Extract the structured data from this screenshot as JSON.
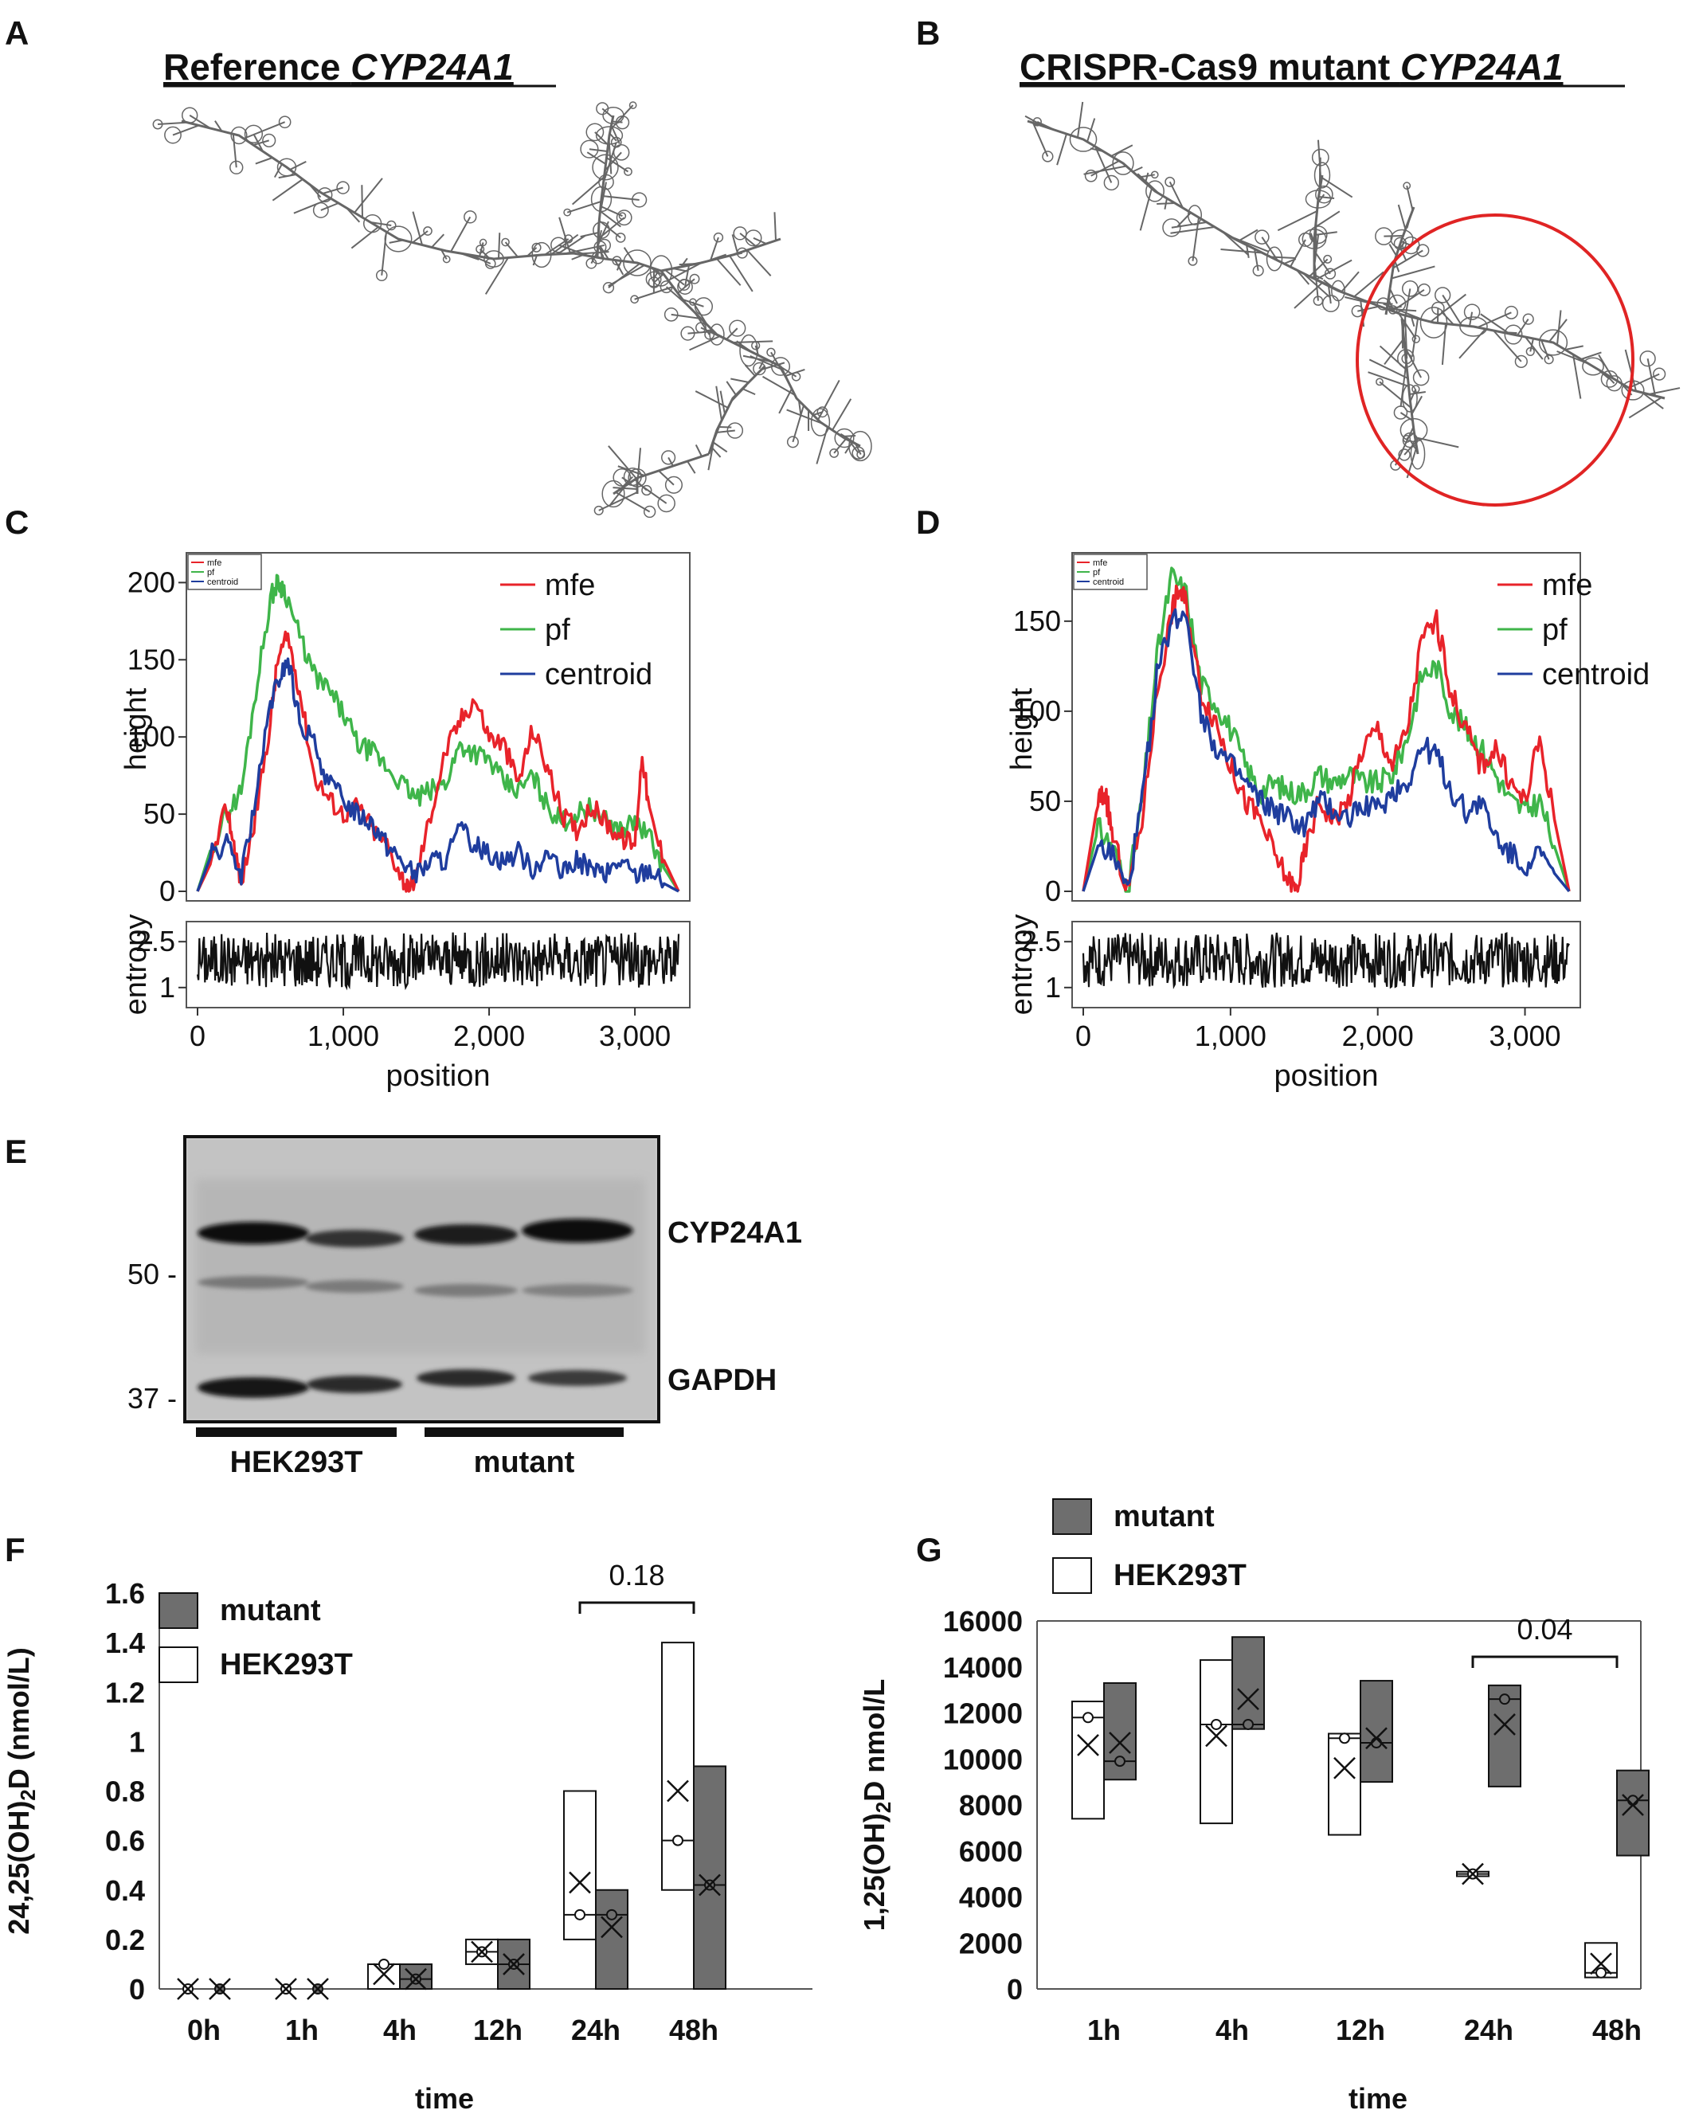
{
  "panels": {
    "A": {
      "label": "A",
      "title_prefix": "Reference ",
      "title_gene": "CYP24A1"
    },
    "B": {
      "label": "B",
      "title_prefix": "CRISPR-Cas9 mutant ",
      "title_gene": "CYP24A1"
    },
    "C": {
      "label": "C"
    },
    "D": {
      "label": "D"
    },
    "E": {
      "label": "E"
    },
    "F": {
      "label": "F"
    },
    "G": {
      "label": "G"
    }
  },
  "colors": {
    "mfe": "#e8232a",
    "pf": "#3fb54a",
    "centroid": "#1f3d9e",
    "entropy": "#111111",
    "mutant_fill": "#6e6e6e",
    "highlight_circle": "#e02424"
  },
  "legend_small": {
    "mfe": "mfe",
    "pf": "pf",
    "centroid": "centroid"
  },
  "legend_big": {
    "mfe": "mfe",
    "pf": "pf",
    "centroid": "centroid"
  },
  "profile_axes": {
    "height_label": "height",
    "entropy_label": "entropy",
    "position_label": "position",
    "x_ticks": [
      "0",
      "1,000",
      "2,000",
      "3,000"
    ],
    "entropy_ticks": [
      "2.5",
      "1"
    ],
    "C_y_ticks": [
      "200",
      "150",
      "100",
      "50",
      "0"
    ],
    "D_y_ticks": [
      "150",
      "100",
      "50",
      "0"
    ]
  },
  "western": {
    "bands": {
      "top": "CYP24A1",
      "bottom": "GAPDH"
    },
    "markers": [
      "50 -",
      "37 -"
    ],
    "groups": [
      "HEK293T",
      "mutant"
    ]
  },
  "boxplot_legend": {
    "mutant": "mutant",
    "hek": "HEK293T"
  },
  "chart_data": [
    {
      "panel": "C",
      "type": "line",
      "x_range": [
        0,
        3300
      ],
      "ylim": [
        0,
        210
      ],
      "ylabel": "height",
      "xlabel": "position",
      "series": [
        {
          "name": "mfe",
          "x": [
            0,
            100,
            200,
            250,
            300,
            400,
            500,
            550,
            620,
            700,
            800,
            900,
            1000,
            1100,
            1200,
            1300,
            1400,
            1450,
            1500,
            1600,
            1700,
            1800,
            1900,
            2000,
            2100,
            2200,
            2300,
            2400,
            2500,
            2600,
            2700,
            2800,
            2900,
            3000,
            3050,
            3100,
            3200,
            3300
          ],
          "values": [
            0,
            20,
            55,
            30,
            5,
            50,
            110,
            150,
            165,
            130,
            75,
            60,
            50,
            55,
            40,
            30,
            10,
            0,
            10,
            50,
            90,
            110,
            125,
            100,
            95,
            70,
            105,
            80,
            50,
            40,
            55,
            45,
            35,
            30,
            90,
            50,
            20,
            0
          ]
        },
        {
          "name": "pf",
          "x": [
            0,
            100,
            200,
            300,
            400,
            500,
            550,
            600,
            700,
            800,
            900,
            1000,
            1100,
            1200,
            1300,
            1400,
            1500,
            1600,
            1700,
            1800,
            1900,
            2000,
            2100,
            2200,
            2300,
            2400,
            2500,
            2600,
            2700,
            2800,
            2900,
            3000,
            3100,
            3200,
            3300
          ],
          "values": [
            0,
            30,
            50,
            65,
            130,
            190,
            200,
            195,
            165,
            140,
            130,
            115,
            95,
            90,
            80,
            70,
            60,
            65,
            70,
            95,
            90,
            85,
            70,
            65,
            75,
            55,
            45,
            50,
            55,
            45,
            40,
            45,
            35,
            15,
            0
          ]
        },
        {
          "name": "centroid",
          "x": [
            0,
            100,
            200,
            300,
            400,
            500,
            550,
            620,
            700,
            800,
            900,
            1000,
            1100,
            1200,
            1300,
            1400,
            1500,
            1600,
            1700,
            1800,
            1900,
            2000,
            2100,
            2200,
            2300,
            2400,
            2500,
            2600,
            2700,
            2800,
            2900,
            3000,
            3100,
            3200,
            3300
          ],
          "values": [
            0,
            25,
            30,
            10,
            60,
            120,
            135,
            150,
            110,
            95,
            70,
            60,
            50,
            45,
            30,
            20,
            10,
            20,
            20,
            40,
            30,
            25,
            20,
            25,
            15,
            25,
            10,
            20,
            15,
            10,
            20,
            10,
            15,
            5,
            0
          ]
        }
      ],
      "entropy": {
        "name": "entropy",
        "ylim": [
          0.5,
          3
        ],
        "x_range": [
          0,
          3300
        ]
      }
    },
    {
      "panel": "D",
      "type": "line",
      "x_range": [
        0,
        3300
      ],
      "ylim": [
        0,
        180
      ],
      "ylabel": "height",
      "xlabel": "position",
      "series": [
        {
          "name": "mfe",
          "x": [
            0,
            100,
            150,
            200,
            300,
            400,
            500,
            600,
            650,
            700,
            800,
            900,
            1000,
            1100,
            1200,
            1300,
            1400,
            1450,
            1500,
            1600,
            1700,
            1800,
            1900,
            2000,
            2100,
            2200,
            2300,
            2400,
            2500,
            2600,
            2700,
            2800,
            2900,
            3000,
            3100,
            3200,
            3300
          ],
          "values": [
            0,
            50,
            55,
            30,
            0,
            40,
            110,
            155,
            168,
            160,
            110,
            95,
            70,
            50,
            40,
            20,
            5,
            0,
            20,
            50,
            40,
            50,
            80,
            90,
            70,
            90,
            140,
            150,
            110,
            90,
            70,
            80,
            60,
            50,
            85,
            40,
            0
          ]
        },
        {
          "name": "pf",
          "x": [
            0,
            100,
            200,
            300,
            400,
            500,
            600,
            700,
            800,
            900,
            1000,
            1100,
            1200,
            1300,
            1400,
            1500,
            1600,
            1700,
            1800,
            1900,
            2000,
            2100,
            2200,
            2300,
            2400,
            2500,
            2600,
            2700,
            2800,
            2900,
            3000,
            3100,
            3200,
            3300
          ],
          "values": [
            0,
            35,
            25,
            0,
            50,
            130,
            175,
            165,
            115,
            105,
            90,
            70,
            55,
            60,
            55,
            55,
            65,
            60,
            65,
            60,
            60,
            65,
            85,
            120,
            125,
            100,
            90,
            80,
            65,
            50,
            45,
            50,
            25,
            0
          ]
        },
        {
          "name": "centroid",
          "x": [
            0,
            100,
            200,
            300,
            400,
            500,
            600,
            700,
            800,
            900,
            1000,
            1100,
            1200,
            1300,
            1400,
            1500,
            1600,
            1700,
            1800,
            1900,
            2000,
            2100,
            2200,
            2300,
            2400,
            2500,
            2600,
            2700,
            2800,
            2900,
            3000,
            3100,
            3200,
            3300
          ],
          "values": [
            0,
            25,
            20,
            0,
            50,
            120,
            150,
            155,
            100,
            80,
            70,
            60,
            50,
            45,
            40,
            35,
            50,
            45,
            40,
            50,
            45,
            55,
            60,
            80,
            75,
            55,
            45,
            50,
            30,
            20,
            15,
            20,
            10,
            0
          ]
        }
      ],
      "entropy": {
        "name": "entropy",
        "ylim": [
          0.5,
          3
        ],
        "x_range": [
          0,
          3300
        ]
      }
    },
    {
      "panel": "F",
      "type": "box",
      "ylabel_main": "24,25(OH)",
      "ylabel_sub": "2",
      "ylabel_rest": "D (nmol/L)",
      "xlabel": "time",
      "categories": [
        "0h",
        "1h",
        "4h",
        "12h",
        "24h",
        "48h"
      ],
      "ylim": [
        0,
        1.6
      ],
      "y_ticks": [
        "1.6",
        "1.4",
        "1.2",
        "1",
        "0.8",
        "0.6",
        "0.4",
        "0.2",
        "0"
      ],
      "y_tick_values": [
        1.6,
        1.4,
        1.2,
        1,
        0.8,
        0.6,
        0.4,
        0.2,
        0
      ],
      "series": [
        {
          "name": "HEK293T",
          "boxes": [
            {
              "low": 0,
              "high": 0,
              "mean": 0.0,
              "median": 0.0
            },
            {
              "low": 0,
              "high": 0,
              "mean": 0.0,
              "median": 0.0
            },
            {
              "low": 0,
              "high": 0.1,
              "mean": 0.06,
              "median": 0.1
            },
            {
              "low": 0.1,
              "high": 0.2,
              "mean": 0.15,
              "median": 0.15
            },
            {
              "low": 0.2,
              "high": 0.8,
              "mean": 0.43,
              "median": 0.3
            },
            {
              "low": 0.4,
              "high": 1.4,
              "mean": 0.8,
              "median": 0.6
            }
          ]
        },
        {
          "name": "mutant",
          "boxes": [
            {
              "low": 0,
              "high": 0,
              "mean": 0.0,
              "median": 0.0
            },
            {
              "low": 0,
              "high": 0,
              "mean": 0.0,
              "median": 0.0
            },
            {
              "low": 0,
              "high": 0.1,
              "mean": 0.04,
              "median": 0.04
            },
            {
              "low": 0.0,
              "high": 0.2,
              "mean": 0.1,
              "median": 0.1
            },
            {
              "low": 0.0,
              "high": 0.4,
              "mean": 0.25,
              "median": 0.3
            },
            {
              "low": 0.0,
              "high": 0.9,
              "mean": 0.42,
              "median": 0.42
            }
          ]
        }
      ],
      "bracket": {
        "from": "24h",
        "to": "48h",
        "label": "0.18"
      }
    },
    {
      "panel": "G",
      "type": "box",
      "ylabel_main": "1,25(OH)",
      "ylabel_sub": "2",
      "ylabel_rest": "D nmol/L",
      "xlabel": "time",
      "categories": [
        "1h",
        "4h",
        "12h",
        "24h",
        "48h"
      ],
      "ylim": [
        0,
        16000
      ],
      "y_ticks": [
        "16000",
        "14000",
        "12000",
        "10000",
        "8000",
        "6000",
        "4000",
        "2000",
        "0"
      ],
      "y_tick_values": [
        16000,
        14000,
        12000,
        10000,
        8000,
        6000,
        4000,
        2000,
        0
      ],
      "series": [
        {
          "name": "HEK293T",
          "boxes": [
            {
              "low": 7400,
              "high": 12500,
              "mean": 10600,
              "median": 11800
            },
            {
              "low": 7200,
              "high": 14300,
              "mean": 11000,
              "median": 11500
            },
            {
              "low": 6700,
              "high": 11100,
              "mean": 9600,
              "median": 10900
            },
            {
              "low": 4900,
              "high": 5100,
              "mean": 5000,
              "median": 5000
            },
            {
              "low": 500,
              "high": 2000,
              "mean": 1100,
              "median": 700
            }
          ]
        },
        {
          "name": "mutant",
          "boxes": [
            {
              "low": 9100,
              "high": 13300,
              "mean": 10700,
              "median": 9900
            },
            {
              "low": 11300,
              "high": 15300,
              "mean": 12600,
              "median": 11500
            },
            {
              "low": 9000,
              "high": 13400,
              "mean": 10900,
              "median": 10700
            },
            {
              "low": 8800,
              "high": 13200,
              "mean": 11500,
              "median": 12600
            },
            {
              "low": 5800,
              "high": 9500,
              "mean": 8000,
              "median": 8200
            }
          ]
        }
      ],
      "bracket": {
        "from": "24h",
        "to": "48h",
        "label": "0.04"
      }
    }
  ]
}
